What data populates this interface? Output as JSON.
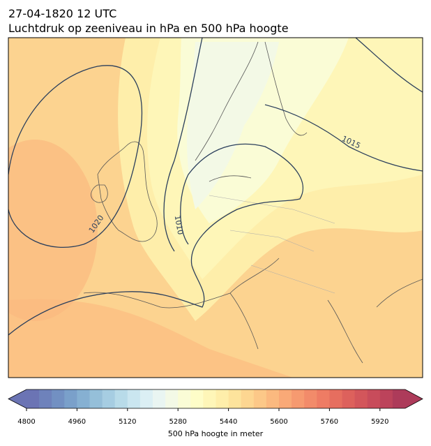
{
  "header": {
    "line1": "27-04-1820 12 UTC",
    "line2": "Luchtdruk op zeeniveau in hPa en 500 hPa hoogte"
  },
  "contour_labels": [
    "1015",
    "1020",
    "1010"
  ],
  "colorbar": {
    "label": "500 hPa hoogte in meter",
    "lim": [
      4800,
      6000
    ],
    "ticks": [
      4800,
      4960,
      5120,
      5280,
      5440,
      5600,
      5760,
      5920
    ],
    "colors": [
      "#6b74b4",
      "#6e82bb",
      "#7290c2",
      "#7aa0ca",
      "#86b0d2",
      "#95bfd9",
      "#a6cde2",
      "#b8dbe9",
      "#cae6f0",
      "#dbeff4",
      "#e9f5f2",
      "#f3f9e6",
      "#fafcd6",
      "#fefdc8",
      "#fef6b8",
      "#feeeaa",
      "#fde39c",
      "#fdd691",
      "#fcc888",
      "#fbb97f",
      "#f9a977",
      "#f69a70",
      "#f28b6a",
      "#ee7c64",
      "#e66e5f",
      "#dd615c",
      "#d3565b",
      "#c84c5b",
      "#bc435b",
      "#ad3b5a"
    ]
  }
}
